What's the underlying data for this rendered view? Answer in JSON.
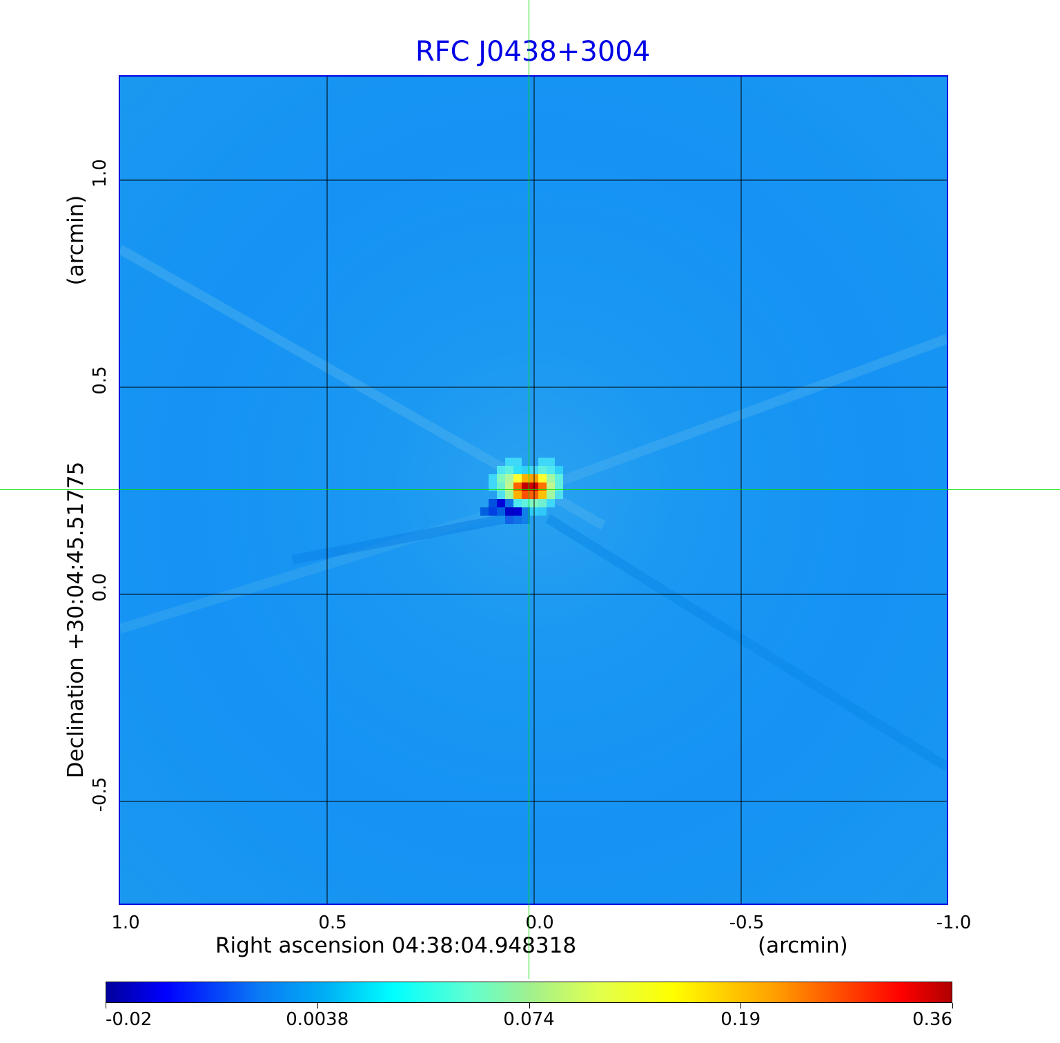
{
  "chart_data": {
    "type": "heatmap",
    "title": "RFC J0438+3004",
    "xlabel": "Right ascension  04:38:04.948318",
    "xunit": "(arcmin)",
    "ylabel": "Declination  +30:04:45.51775",
    "yunit": "(arcmin)",
    "xlim": [
      1.0,
      -1.0
    ],
    "ylim": [
      -0.75,
      1.25
    ],
    "xticks": [
      "1.0",
      "0.5",
      "0.0",
      "-0.5",
      "-1.0"
    ],
    "yticks": [
      "1.0",
      "0.5",
      "0.0",
      "-0.5"
    ],
    "grid": true,
    "colormap": "jet",
    "colorbar": {
      "ticks": [
        "-0.02",
        "0.0038",
        "0.074",
        "0.19",
        "0.36"
      ],
      "range": [
        -0.02,
        0.36
      ],
      "placement": "bottom"
    },
    "peak": {
      "x": 0.0,
      "y": 0.25,
      "value": 0.36
    },
    "crosshair": {
      "x": 0.01,
      "y": 0.26,
      "color": "#00e000"
    }
  }
}
